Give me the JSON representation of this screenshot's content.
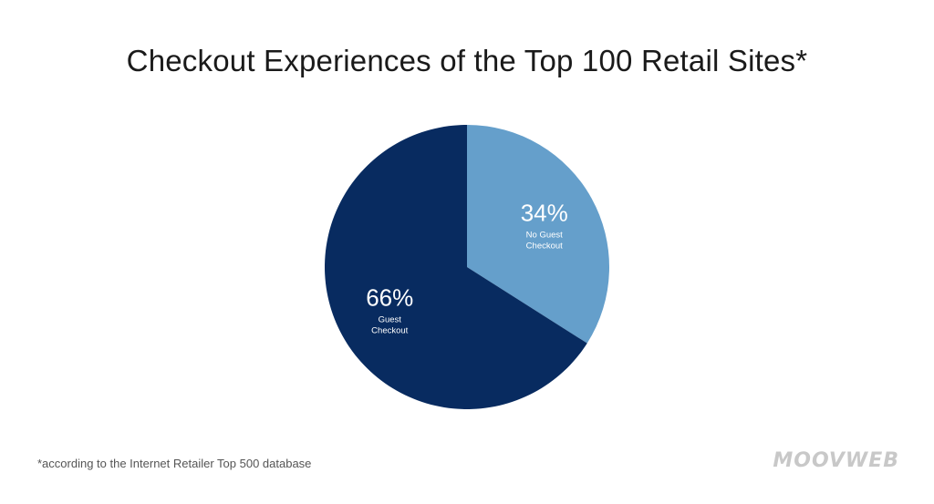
{
  "chart_data": {
    "type": "pie",
    "title": "Checkout Experiences of the Top 100 Retail Sites*",
    "slices": [
      {
        "label_lines": [
          "No Guest",
          "Checkout"
        ],
        "value": 34,
        "value_label": "34%",
        "color": "#659fcb"
      },
      {
        "label_lines": [
          "Guest",
          "Checkout"
        ],
        "value": 66,
        "value_label": "66%",
        "color": "#082b60"
      }
    ],
    "start": "12 o'clock",
    "direction": "clockwise"
  },
  "footnote": "*according to the Internet Retailer Top 500 database",
  "logo_text": "MOOVWEB"
}
